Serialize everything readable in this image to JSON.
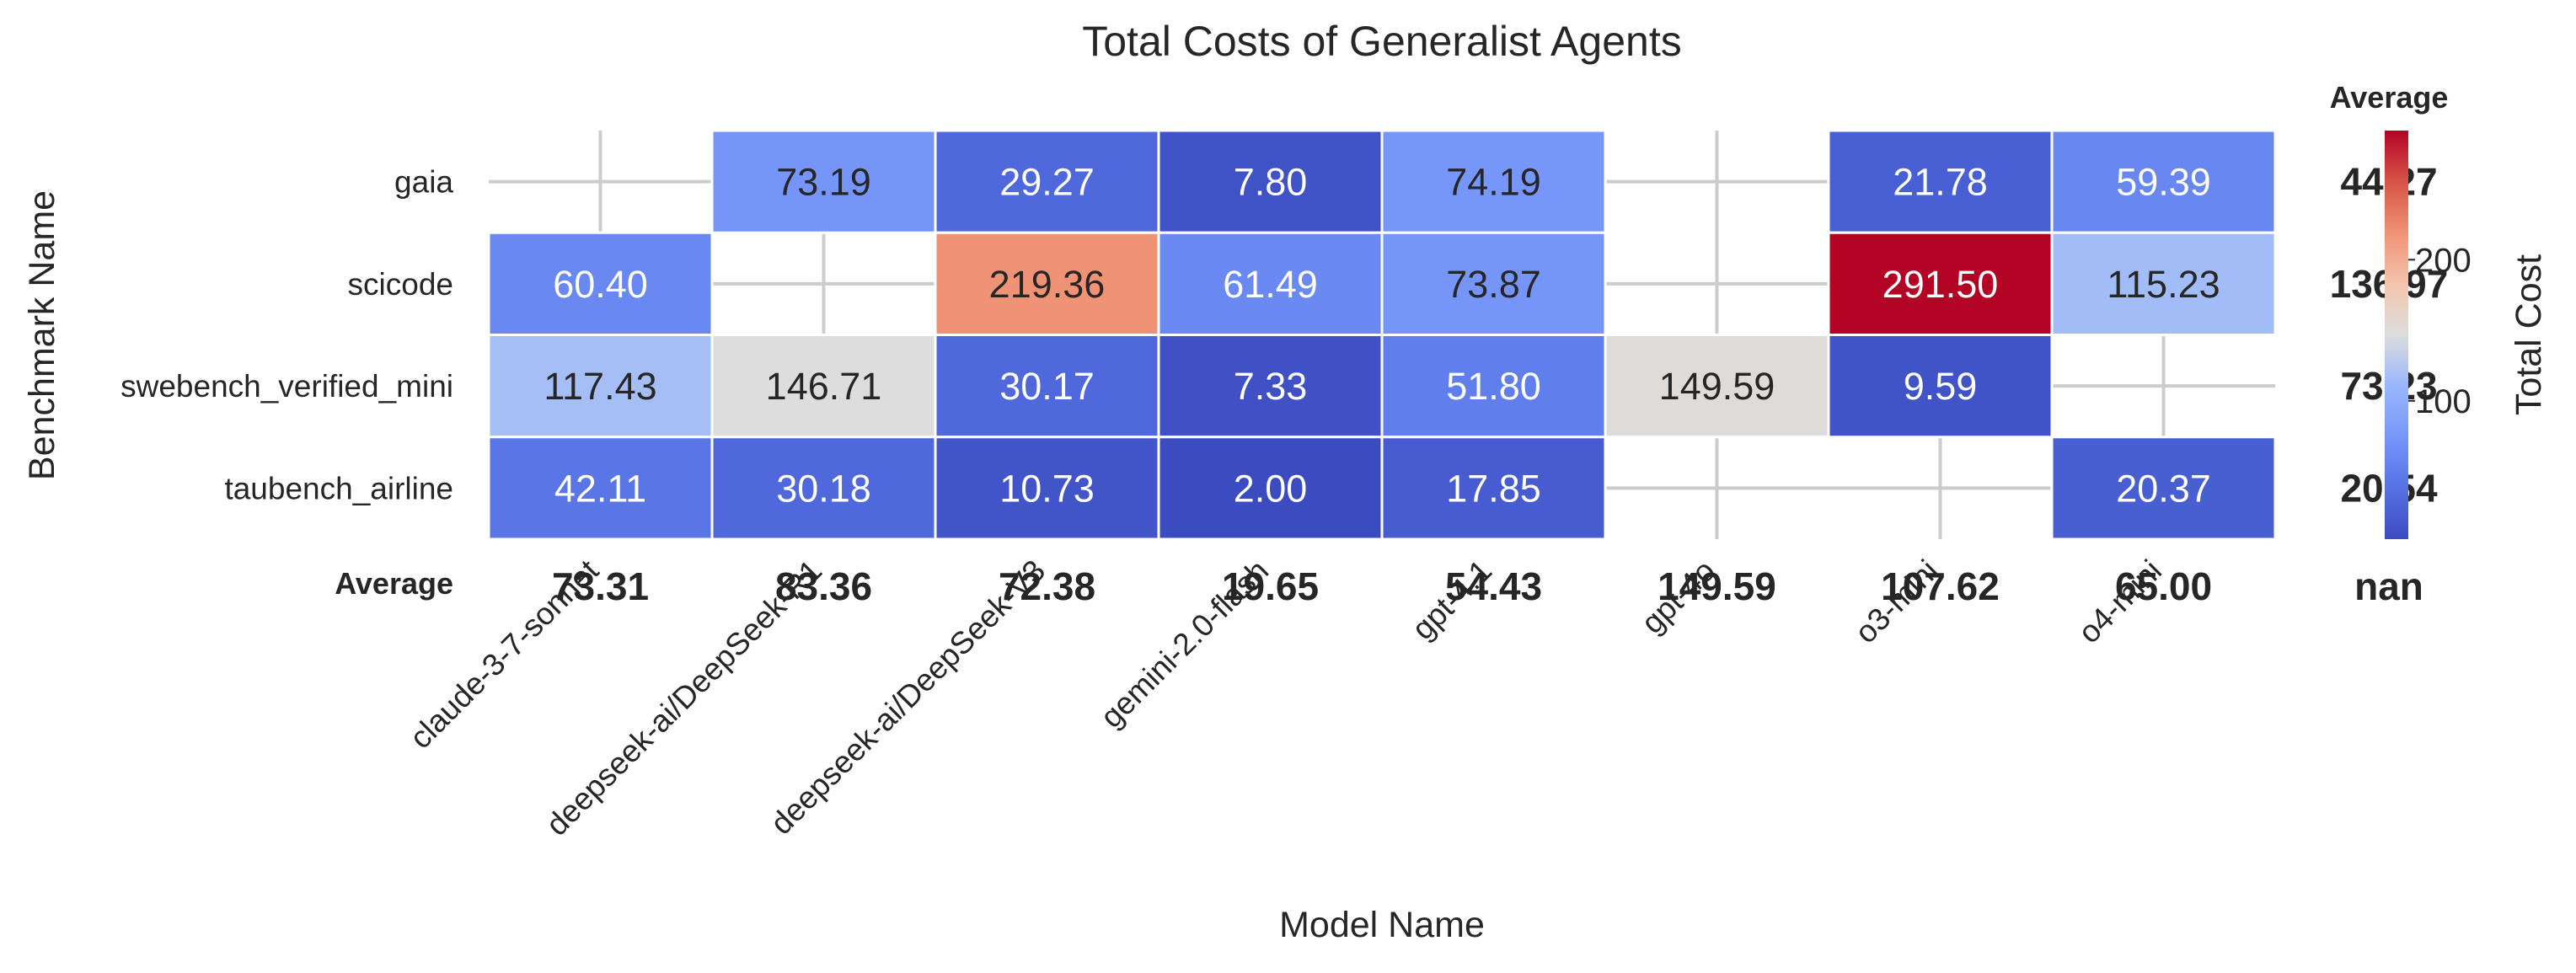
{
  "chart_data": {
    "type": "heatmap",
    "title": "Total Costs of Generalist Agents",
    "xlabel": "Model Name",
    "ylabel": "Benchmark Name",
    "colorbar_label": "Total Cost",
    "colorbar_ticks": [
      100,
      200
    ],
    "colormap": "coolwarm",
    "vmin": 2.0,
    "vmax": 291.5,
    "average_label": "Average",
    "columns": [
      "claude-3-7-sonnet",
      "deepseek-ai/DeepSeek-R1",
      "deepseek-ai/DeepSeek-V3",
      "gemini-2.0-flash",
      "gpt-4.1",
      "gpt-4o",
      "o3-mini",
      "o4-mini"
    ],
    "rows": [
      "gaia",
      "scicode",
      "swebench_verified_mini",
      "taubench_airline"
    ],
    "values": [
      [
        null,
        73.19,
        29.27,
        7.8,
        74.19,
        null,
        21.78,
        59.39
      ],
      [
        60.4,
        null,
        219.36,
        61.49,
        73.87,
        null,
        291.5,
        115.23
      ],
      [
        117.43,
        146.71,
        30.17,
        7.33,
        51.8,
        149.59,
        9.59,
        null
      ],
      [
        42.11,
        30.18,
        10.73,
        2.0,
        17.85,
        null,
        null,
        20.37
      ]
    ],
    "row_averages": [
      "44.27",
      "136.97",
      "73.23",
      "20.54"
    ],
    "column_averages": [
      "73.31",
      "83.36",
      "72.38",
      "19.65",
      "54.43",
      "149.59",
      "107.62",
      "65.00"
    ],
    "corner_average": "nan",
    "grid": true
  }
}
